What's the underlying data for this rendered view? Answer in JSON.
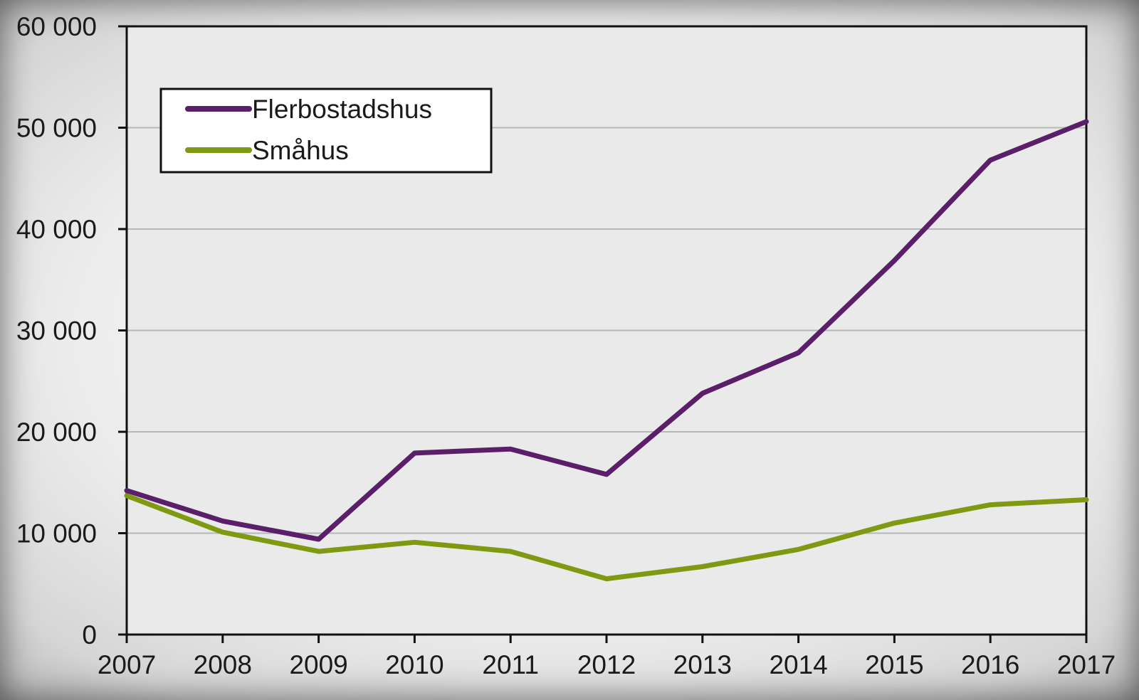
{
  "chart_data": {
    "type": "line",
    "x": [
      "2007",
      "2008",
      "2009",
      "2010",
      "2011",
      "2012",
      "2013",
      "2014",
      "2015",
      "2016",
      "2017"
    ],
    "series": [
      {
        "name": "Flerbostadshus",
        "color": "#5b1f6a",
        "values": [
          14200,
          11200,
          9400,
          17900,
          18300,
          15800,
          23800,
          27800,
          36900,
          46800,
          50600
        ]
      },
      {
        "name": "Småhus",
        "color": "#7f9a12",
        "values": [
          13700,
          10100,
          8200,
          9100,
          8200,
          5500,
          6700,
          8400,
          11000,
          12800,
          13300
        ]
      }
    ],
    "ylim": [
      0,
      60000
    ],
    "yticks": [
      0,
      10000,
      20000,
      30000,
      40000,
      50000,
      60000
    ],
    "ytick_labels": [
      "0",
      "10 000",
      "20 000",
      "30 000",
      "40 000",
      "50 000",
      "60 000"
    ],
    "grid": true,
    "legend_position": "top-left",
    "plot_background": "#eaeaea",
    "gridline_color": "#b7b7b7"
  }
}
